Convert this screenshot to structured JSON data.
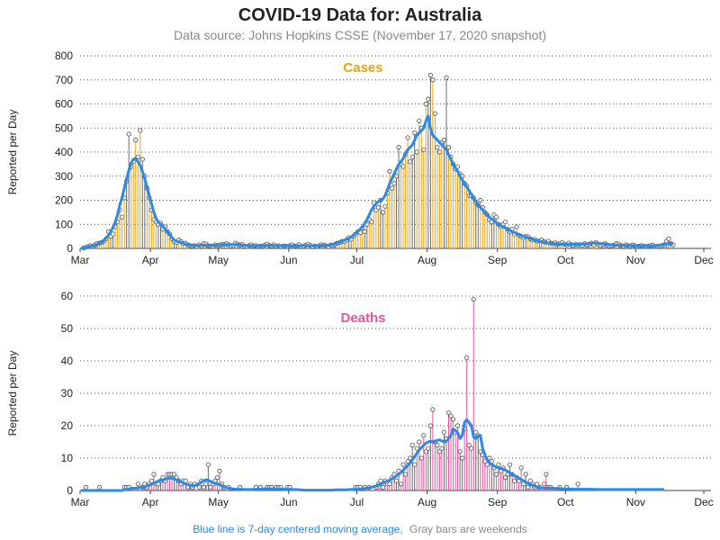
{
  "title": "COVID-19 Data for: Australia",
  "subtitle": "Data source: Johns Hopkins CSSE (November 17, 2020 snapshot)",
  "footer": {
    "part1": "Blue line is 7-day centered moving average,",
    "part2": "Gray bars are weekends"
  },
  "colors": {
    "cases": "#f0a30a",
    "deaths": "#e8559c",
    "weekend": "#6b6b6b",
    "avg": "#2a8ae6",
    "grid": "#555555",
    "marker_fill": "#f2f2f2",
    "marker_edge": "#555555"
  },
  "chart_data": [
    {
      "type": "bar",
      "title": "Cases",
      "ylabel": "Reported per Day",
      "ylim": [
        0,
        800
      ],
      "yticks": [
        0,
        100,
        200,
        300,
        400,
        500,
        600,
        700,
        800
      ],
      "xlim": [
        "2020-03-01",
        "2020-12-01"
      ],
      "xtick_labels": [
        "Mar",
        "Apr",
        "May",
        "Jun",
        "Jul",
        "Aug",
        "Sep",
        "Oct",
        "Nov",
        "Dec"
      ],
      "grid": "horizontal dotted",
      "start_date": "2020-03-01",
      "series": [
        {
          "name": "daily",
          "values": [
            0,
            2,
            5,
            8,
            12,
            8,
            15,
            20,
            22,
            25,
            30,
            40,
            70,
            50,
            60,
            90,
            110,
            160,
            130,
            210,
            280,
            475,
            340,
            360,
            450,
            380,
            490,
            370,
            300,
            250,
            210,
            160,
            120,
            110,
            100,
            105,
            80,
            90,
            70,
            60,
            40,
            30,
            25,
            35,
            28,
            20,
            22,
            15,
            12,
            10,
            12,
            8,
            15,
            10,
            20,
            18,
            12,
            10,
            8,
            15,
            12,
            14,
            18,
            16,
            20,
            15,
            10,
            12,
            22,
            18,
            14,
            16,
            10,
            8,
            12,
            15,
            10,
            12,
            8,
            10,
            9,
            14,
            18,
            12,
            10,
            15,
            9,
            11,
            7,
            10,
            10,
            8,
            12,
            15,
            10,
            11,
            16,
            7,
            9,
            14,
            18,
            12,
            6,
            10,
            8,
            12,
            15,
            14,
            11,
            7,
            15,
            13,
            18,
            22,
            25,
            30,
            28,
            35,
            45,
            38,
            50,
            60,
            70,
            65,
            85,
            70,
            100,
            120,
            110,
            190,
            160,
            170,
            200,
            150,
            175,
            230,
            320,
            250,
            270,
            300,
            420,
            350,
            340,
            390,
            460,
            360,
            380,
            480,
            400,
            530,
            500,
            410,
            600,
            620,
            720,
            700,
            560,
            420,
            400,
            440,
            450,
            710,
            420,
            380,
            350,
            330,
            340,
            310,
            300,
            270,
            260,
            220,
            220,
            210,
            190,
            180,
            200,
            170,
            150,
            140,
            120,
            110,
            140,
            130,
            100,
            90,
            100,
            110,
            80,
            70,
            80,
            60,
            90,
            55,
            50,
            45,
            50,
            48,
            40,
            35,
            38,
            30,
            32,
            35,
            28,
            25,
            30,
            22,
            20,
            24,
            18,
            20,
            25,
            18,
            15,
            22,
            16,
            12,
            18,
            14,
            16,
            12,
            20,
            14,
            18,
            22,
            15,
            25,
            18,
            12,
            16,
            20,
            14,
            10,
            12,
            14,
            20,
            18,
            12,
            10,
            15,
            12,
            10,
            14,
            12,
            8,
            10,
            12,
            9,
            8,
            10,
            12,
            14,
            8,
            9,
            10,
            12,
            15,
            30,
            40,
            20,
            15
          ]
        },
        {
          "name": "7-day average",
          "values": [
            0,
            2,
            4,
            7,
            9,
            11,
            13,
            17,
            22,
            26,
            33,
            44,
            55,
            69,
            87,
            110,
            140,
            180,
            210,
            250,
            290,
            325,
            355,
            370,
            375,
            360,
            345,
            320,
            290,
            255,
            220,
            185,
            150,
            125,
            110,
            100,
            92,
            80,
            70,
            58,
            45,
            35,
            30,
            27,
            25,
            22,
            18,
            16,
            14,
            12,
            12,
            12,
            12,
            13,
            13,
            13,
            12,
            12,
            12,
            13,
            13,
            15,
            16,
            16,
            16,
            16,
            16,
            16,
            16,
            16,
            15,
            14,
            13,
            12,
            12,
            11,
            11,
            11,
            11,
            11,
            11,
            12,
            12,
            12,
            12,
            12,
            12,
            11,
            11,
            11,
            11,
            11,
            11,
            11,
            11,
            11,
            11,
            11,
            12,
            12,
            12,
            11,
            11,
            11,
            11,
            11,
            12,
            12,
            12,
            13,
            15,
            17,
            20,
            23,
            26,
            30,
            34,
            38,
            42,
            47,
            55,
            63,
            70,
            80,
            90,
            105,
            120,
            140,
            160,
            175,
            185,
            195,
            200,
            205,
            220,
            245,
            270,
            290,
            310,
            330,
            350,
            360,
            375,
            395,
            410,
            420,
            430,
            450,
            470,
            480,
            490,
            500,
            530,
            550,
            500,
            470,
            460,
            450,
            440,
            430,
            420,
            410,
            390,
            370,
            350,
            335,
            320,
            300,
            285,
            270,
            255,
            240,
            225,
            210,
            195,
            180,
            170,
            160,
            150,
            140,
            130,
            122,
            115,
            108,
            100,
            95,
            90,
            85,
            80,
            75,
            70,
            66,
            62,
            58,
            54,
            50,
            47,
            44,
            41,
            38,
            35,
            32,
            30,
            28,
            26,
            24,
            22,
            21,
            20,
            19,
            18,
            18,
            18,
            17,
            17,
            17,
            17,
            17,
            17,
            17,
            17,
            18,
            18,
            19,
            20,
            21,
            22,
            22,
            21,
            20,
            19,
            18,
            17,
            16,
            15,
            14,
            14,
            14,
            13,
            13,
            12,
            12,
            12,
            11,
            11,
            11,
            10,
            10,
            10,
            10,
            10,
            10,
            11,
            11,
            12,
            13,
            15,
            17,
            19,
            21,
            20,
            18
          ]
        }
      ]
    },
    {
      "type": "bar",
      "title": "Deaths",
      "ylabel": "Reported per Day",
      "ylim": [
        0,
        60
      ],
      "yticks": [
        0,
        10,
        20,
        30,
        40,
        50,
        60
      ],
      "xlim": [
        "2020-03-01",
        "2020-12-01"
      ],
      "xtick_labels": [
        "Mar",
        "Apr",
        "May",
        "Jun",
        "Jul",
        "Aug",
        "Sep",
        "Oct",
        "Nov",
        "Dec"
      ],
      "grid": "horizontal dotted",
      "start_date": "2020-03-01",
      "series": [
        {
          "name": "daily",
          "values": [
            0,
            0,
            1,
            0,
            0,
            0,
            0,
            0,
            1,
            0,
            0,
            0,
            0,
            0,
            0,
            0,
            0,
            0,
            0,
            1,
            1,
            1,
            0,
            0,
            0,
            2,
            0,
            1,
            2,
            1,
            2,
            3,
            5,
            2,
            2,
            3,
            4,
            3,
            5,
            5,
            5,
            5,
            4,
            3,
            2,
            3,
            3,
            1,
            2,
            1,
            2,
            0,
            1,
            3,
            1,
            2,
            8,
            1,
            2,
            3,
            4,
            6,
            2,
            1,
            0,
            1,
            0,
            0,
            0,
            0,
            1,
            0,
            0,
            0,
            0,
            0,
            0,
            1,
            0,
            1,
            0,
            0,
            1,
            1,
            1,
            0,
            1,
            1,
            1,
            0,
            0,
            1,
            1,
            0,
            0,
            0,
            0,
            0,
            0,
            0,
            0,
            0,
            0,
            0,
            0,
            0,
            0,
            0,
            0,
            0,
            0,
            0,
            0,
            0,
            0,
            0,
            0,
            0,
            0,
            0,
            0,
            1,
            1,
            1,
            0,
            1,
            0,
            1,
            0,
            0,
            1,
            2,
            3,
            1,
            3,
            2,
            2,
            4,
            5,
            3,
            6,
            2,
            8,
            5,
            9,
            10,
            14,
            8,
            13,
            15,
            10,
            17,
            12,
            13,
            20,
            25,
            15,
            14,
            12,
            13,
            18,
            16,
            24,
            23,
            22,
            18,
            20,
            12,
            10,
            19,
            41,
            14,
            13,
            59,
            18,
            17,
            12,
            11,
            9,
            8,
            10,
            9,
            7,
            5,
            8,
            6,
            7,
            4,
            5,
            8,
            5,
            3,
            4,
            3,
            7,
            2,
            5,
            1,
            3,
            2,
            1,
            2,
            1,
            0,
            2,
            5,
            1,
            1,
            0,
            0,
            0,
            1,
            0,
            0,
            1,
            0,
            0,
            0,
            0,
            2,
            0,
            0,
            0,
            0,
            0,
            0,
            0,
            0,
            0,
            0,
            0,
            0,
            0,
            0,
            0,
            0,
            0,
            0,
            0,
            0,
            0,
            0,
            0,
            0,
            0,
            0,
            0,
            0,
            0,
            0,
            0,
            0,
            0,
            0,
            0,
            0,
            0,
            0
          ]
        },
        {
          "name": "7-day average",
          "values": [
            0,
            0,
            0,
            0,
            0,
            0,
            0,
            0,
            0,
            0,
            0,
            0,
            0,
            0,
            0,
            0,
            0,
            0,
            0,
            0.3,
            0.4,
            0.5,
            0.6,
            0.7,
            0.7,
            0.8,
            0.9,
            1,
            1.2,
            1.4,
            1.6,
            2,
            2.3,
            2.6,
            2.9,
            3.1,
            3.3,
            3.5,
            3.7,
            3.8,
            3.8,
            3.6,
            3.3,
            3,
            2.7,
            2.3,
            2,
            1.8,
            1.6,
            1.4,
            1.5,
            1.8,
            2.2,
            2.6,
            3,
            3.3,
            3.2,
            2.8,
            2.5,
            2.2,
            2,
            1.8,
            1.5,
            1.2,
            0.9,
            0.7,
            0.6,
            0.5,
            0.4,
            0.4,
            0.4,
            0.3,
            0.3,
            0.3,
            0.3,
            0.3,
            0.3,
            0.4,
            0.4,
            0.4,
            0.5,
            0.5,
            0.5,
            0.5,
            0.5,
            0.5,
            0.5,
            0.5,
            0.5,
            0.4,
            0.4,
            0.4,
            0.4,
            0.3,
            0.3,
            0.3,
            0.2,
            0.2,
            0.1,
            0.1,
            0.1,
            0.1,
            0.1,
            0.1,
            0.1,
            0.1,
            0.1,
            0.1,
            0.1,
            0.1,
            0.1,
            0.1,
            0.2,
            0.2,
            0.2,
            0.2,
            0.2,
            0.2,
            0.3,
            0.3,
            0.3,
            0.4,
            0.4,
            0.5,
            0.5,
            0.6,
            0.7,
            0.8,
            1,
            1.2,
            1.4,
            1.7,
            2,
            2.3,
            2.6,
            2.9,
            3.2,
            3.6,
            4,
            4.5,
            5,
            5.6,
            6.2,
            7,
            7.8,
            8.5,
            9.5,
            10.5,
            11.5,
            12.5,
            13.3,
            14,
            14.6,
            15,
            15.2,
            15,
            15.1,
            15.5,
            15.6,
            15.3,
            15,
            15.2,
            16,
            17,
            19,
            18.5,
            17.8,
            16,
            17,
            21,
            21.8,
            21,
            20,
            16.5,
            16,
            16.8,
            17,
            13,
            11,
            9.5,
            8.5,
            8,
            7.6,
            7.2,
            7,
            6.8,
            6.6,
            6.3,
            5.9,
            5.5,
            5,
            4.6,
            4.2,
            3.8,
            3.4,
            3,
            2.6,
            2.2,
            1.9,
            1.6,
            1.3,
            1.1,
            0.9,
            0.8,
            0.7,
            0.7,
            0.7,
            0.7,
            0.7,
            0.6,
            0.6,
            0.6,
            0.5,
            0.5,
            0.5,
            0.5,
            0.5,
            0.4,
            0.4,
            0.4,
            0.4,
            0.4,
            0.4,
            0.4,
            0.4,
            0.4,
            0.4,
            0.3,
            0.3,
            0.3,
            0.3,
            0.3,
            0.3,
            0.3,
            0.3,
            0.3,
            0.3,
            0.3,
            0.3,
            0.3,
            0.3,
            0.3,
            0.3,
            0.3,
            0.3,
            0.3,
            0.3,
            0.3,
            0.3,
            0.3,
            0.3,
            0.3,
            0.3,
            0.3,
            0.3,
            0.3,
            0.3,
            0.3
          ]
        }
      ]
    }
  ]
}
